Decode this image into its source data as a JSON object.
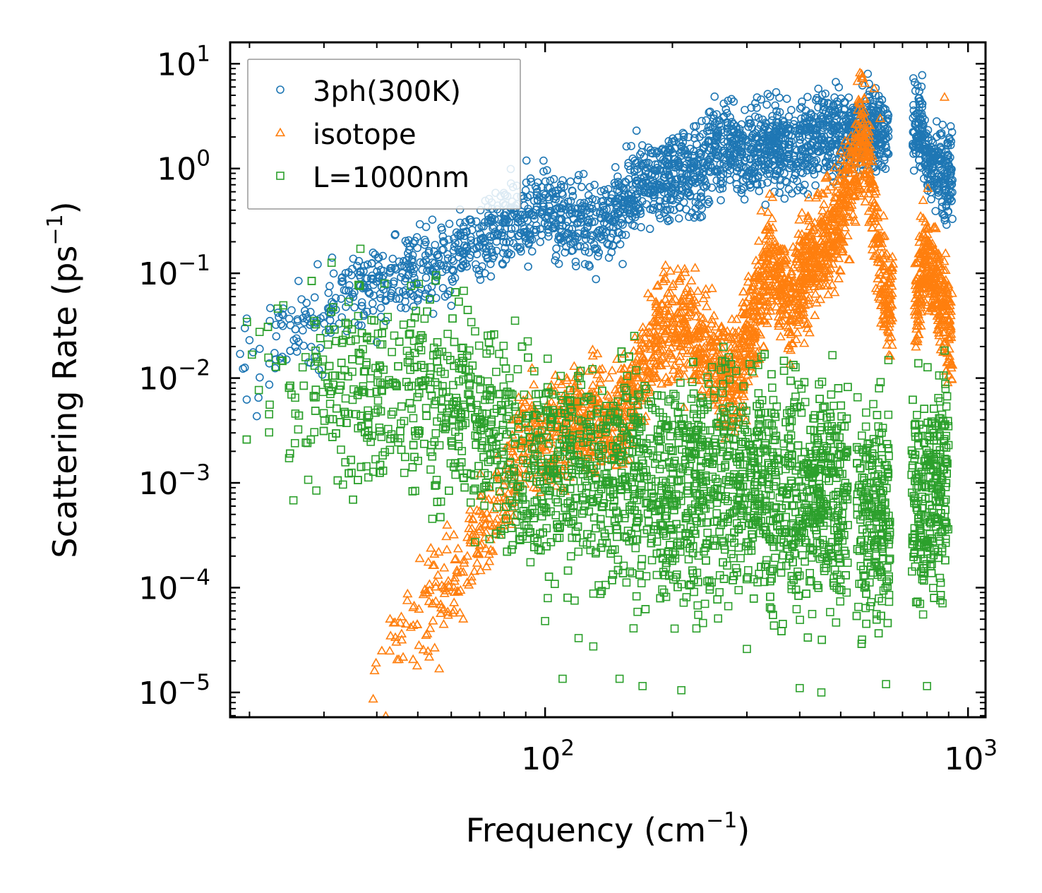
{
  "chart_data": {
    "type": "scatter",
    "x_scale": "log",
    "y_scale": "log",
    "xlim": [
      18,
      1100
    ],
    "ylim": [
      5.8e-06,
      16
    ],
    "xlabel": {
      "text": "Frequency (cm",
      "sup": "−1",
      "tail": ")"
    },
    "ylabel": {
      "text": "Scattering Rate (ps",
      "sup": "−1",
      "tail": ")"
    },
    "x_major_ticks": [
      {
        "value": 100,
        "base": "10",
        "exp": "2"
      },
      {
        "value": 1000,
        "base": "10",
        "exp": "3"
      }
    ],
    "y_major_ticks": [
      {
        "value": 10,
        "base": "10",
        "exp": "1"
      },
      {
        "value": 1,
        "base": "10",
        "exp": "0"
      },
      {
        "value": 0.1,
        "base": "10",
        "exp": "−1"
      },
      {
        "value": 0.01,
        "base": "10",
        "exp": "−2"
      },
      {
        "value": 0.001,
        "base": "10",
        "exp": "−3"
      },
      {
        "value": 0.0001,
        "base": "10",
        "exp": "−4"
      },
      {
        "value": 1e-05,
        "base": "10",
        "exp": "−5"
      }
    ],
    "legend": {
      "location": "upper left"
    },
    "series": [
      {
        "name": "3ph(300K)",
        "marker": "circle",
        "color": "#1f77b4",
        "trend": [
          [
            19,
            0.012
          ],
          [
            20,
            0.008
          ],
          [
            25,
            0.032
          ],
          [
            28,
            0.03
          ],
          [
            32,
            0.05
          ],
          [
            38,
            0.075
          ],
          [
            45,
            0.1
          ],
          [
            55,
            0.12
          ],
          [
            65,
            0.18
          ],
          [
            80,
            0.28
          ],
          [
            100,
            0.42
          ],
          [
            115,
            0.3
          ],
          [
            135,
            0.28
          ],
          [
            150,
            0.42
          ],
          [
            165,
            0.7
          ],
          [
            180,
            0.75
          ],
          [
            200,
            0.95
          ],
          [
            230,
            0.9
          ],
          [
            250,
            1.6
          ],
          [
            300,
            1.5
          ],
          [
            350,
            1.7
          ],
          [
            400,
            1.8
          ],
          [
            450,
            2.0
          ],
          [
            500,
            2.0
          ],
          [
            560,
            2.6
          ],
          [
            640,
            2.1
          ],
          [
            780,
            2.4
          ],
          [
            800,
            1.3
          ],
          [
            880,
            0.8
          ],
          [
            920,
            0.95
          ]
        ],
        "gaps": [
          [
            650,
            740
          ]
        ],
        "spread": 0.35,
        "density": 2400,
        "sparse_points": [
          [
            19,
            0.017
          ],
          [
            19.5,
            0.03
          ],
          [
            19.7,
            0.037
          ],
          [
            20,
            0.023
          ],
          [
            21,
            0.0065
          ],
          [
            25,
            0.032
          ],
          [
            26,
            0.035
          ],
          [
            27,
            0.034
          ],
          [
            28,
            0.034
          ],
          [
            28.5,
            0.016
          ],
          [
            32,
            0.045
          ],
          [
            34,
            0.028
          ],
          [
            35,
            0.11
          ],
          [
            38,
            0.073
          ],
          [
            39,
            0.095
          ],
          [
            40,
            0.022
          ],
          [
            42,
            0.035
          ],
          [
            46,
            0.1
          ],
          [
            50,
            0.055
          ],
          [
            52,
            0.06
          ],
          [
            55,
            0.085
          ],
          [
            58,
            0.06
          ],
          [
            60,
            0.049
          ]
        ]
      },
      {
        "name": "isotope",
        "marker": "triangle",
        "color": "#ff7f0e",
        "trend": [
          [
            39,
            1.25e-05
          ],
          [
            42,
            1.8e-05
          ],
          [
            45,
            2.5e-05
          ],
          [
            50,
            5e-05
          ],
          [
            55,
            8e-05
          ],
          [
            60,
            0.0001
          ],
          [
            65,
            0.00013
          ],
          [
            70,
            0.0003
          ],
          [
            75,
            0.00045
          ],
          [
            80,
            0.0008
          ],
          [
            85,
            0.0015
          ],
          [
            90,
            0.003
          ],
          [
            100,
            0.0025
          ],
          [
            120,
            0.004
          ],
          [
            150,
            0.004
          ],
          [
            170,
            0.012
          ],
          [
            190,
            0.035
          ],
          [
            210,
            0.03
          ],
          [
            240,
            0.02
          ],
          [
            270,
            0.01
          ],
          [
            300,
            0.02
          ],
          [
            340,
            0.15
          ],
          [
            380,
            0.05
          ],
          [
            420,
            0.12
          ],
          [
            460,
            0.2
          ],
          [
            500,
            0.4
          ],
          [
            540,
            1.0
          ],
          [
            560,
            2.5
          ],
          [
            600,
            0.4
          ],
          [
            640,
            0.05
          ],
          [
            760,
            0.06
          ],
          [
            800,
            0.15
          ],
          [
            880,
            0.05
          ],
          [
            920,
            0.02
          ]
        ],
        "gaps": [
          [
            665,
            745
          ]
        ],
        "spread": 0.45,
        "density": 2600,
        "sparse_points": [
          [
            560,
            8.0
          ],
          [
            570,
            6.5
          ],
          [
            600,
            5.8
          ],
          [
            880,
            4.8
          ],
          [
            620,
            3.0
          ]
        ]
      },
      {
        "name": "L=1000nm",
        "marker": "square",
        "color": "#2ca02c",
        "trend": [
          [
            19,
            0.006
          ],
          [
            20,
            0.007
          ],
          [
            25,
            0.008
          ],
          [
            30,
            0.0072
          ],
          [
            40,
            0.007
          ],
          [
            50,
            0.0065
          ],
          [
            60,
            0.006
          ],
          [
            70,
            0.004
          ],
          [
            80,
            0.0025
          ],
          [
            90,
            0.0015
          ],
          [
            110,
            0.0012
          ],
          [
            150,
            0.0012
          ],
          [
            200,
            0.001
          ],
          [
            250,
            0.001
          ],
          [
            300,
            0.0009
          ],
          [
            350,
            0.0009
          ],
          [
            400,
            0.0008
          ],
          [
            450,
            0.0008
          ],
          [
            500,
            0.0007
          ],
          [
            560,
            0.0006
          ],
          [
            640,
            0.0005
          ],
          [
            740,
            0.0006
          ],
          [
            800,
            0.0008
          ],
          [
            900,
            0.0012
          ]
        ],
        "gaps": [
          [
            520,
            545
          ],
          [
            655,
            735
          ]
        ],
        "spread": 0.9,
        "density": 3600,
        "sparse_points": [
          [
            33,
            0.0105
          ],
          [
            35,
            0.0115
          ],
          [
            48,
            0.012
          ],
          [
            60,
            0.0025
          ],
          [
            100,
            4.8e-05
          ],
          [
            110,
            1.35e-05
          ],
          [
            120,
            3.3e-05
          ],
          [
            130,
            2.75e-05
          ],
          [
            150,
            1.35e-05
          ],
          [
            170,
            1.15e-05
          ],
          [
            210,
            1.05e-05
          ],
          [
            300,
            2.6e-05
          ],
          [
            400,
            1.1e-05
          ],
          [
            450,
            1e-05
          ],
          [
            640,
            1.2e-05
          ],
          [
            800,
            1.15e-05
          ]
        ]
      }
    ]
  }
}
